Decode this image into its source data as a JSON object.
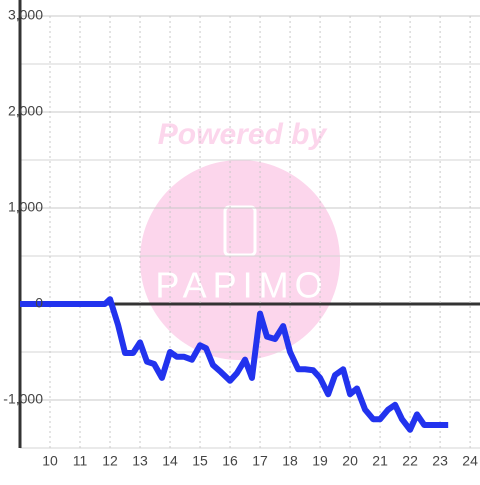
{
  "chart_data": {
    "type": "line",
    "watermark": {
      "text": "Powered by",
      "logo_text": "PAPIMO"
    },
    "x": [
      9,
      11.83,
      12,
      12.27,
      12.5,
      12.77,
      13,
      13.23,
      13.47,
      13.73,
      14,
      14.23,
      14.47,
      14.73,
      15,
      15.2,
      15.43,
      15.7,
      16,
      16.23,
      16.5,
      16.73,
      17,
      17.23,
      17.5,
      17.77,
      18,
      18.27,
      18.5,
      18.77,
      19,
      19.27,
      19.5,
      19.77,
      20,
      20.23,
      20.5,
      20.77,
      21,
      21.27,
      21.5,
      21.73,
      22,
      22.23,
      22.47,
      22.73,
      23.27
    ],
    "series": [
      {
        "color": "#2233ee",
        "values": [
          0,
          0,
          50,
          -220,
          -510,
          -510,
          -400,
          -600,
          -625,
          -770,
          -500,
          -550,
          -550,
          -580,
          -430,
          -460,
          -635,
          -710,
          -800,
          -720,
          -580,
          -770,
          -100,
          -340,
          -365,
          -230,
          -500,
          -680,
          -680,
          -690,
          -770,
          -940,
          -740,
          -680,
          -940,
          -880,
          -1100,
          -1200,
          -1200,
          -1100,
          -1050,
          -1200,
          -1310,
          -1150,
          -1260,
          -1260,
          -1260
        ]
      }
    ],
    "xlim": [
      9,
      24.33
    ],
    "ylim": [
      -1500,
      3000
    ],
    "xticks": [
      10,
      11,
      12,
      13,
      14,
      15,
      16,
      17,
      18,
      19,
      20,
      21,
      22,
      23,
      24
    ],
    "yticks": [
      {
        "value": -1000,
        "label": "-1,000"
      },
      0,
      {
        "value": 1000,
        "label": "1,000"
      },
      {
        "value": 2000,
        "label": "2,000"
      },
      {
        "value": 3000,
        "label": "3,000"
      }
    ],
    "y_minor_ticks": [
      -1500,
      -500,
      500,
      1500,
      2500
    ],
    "grid": true
  }
}
